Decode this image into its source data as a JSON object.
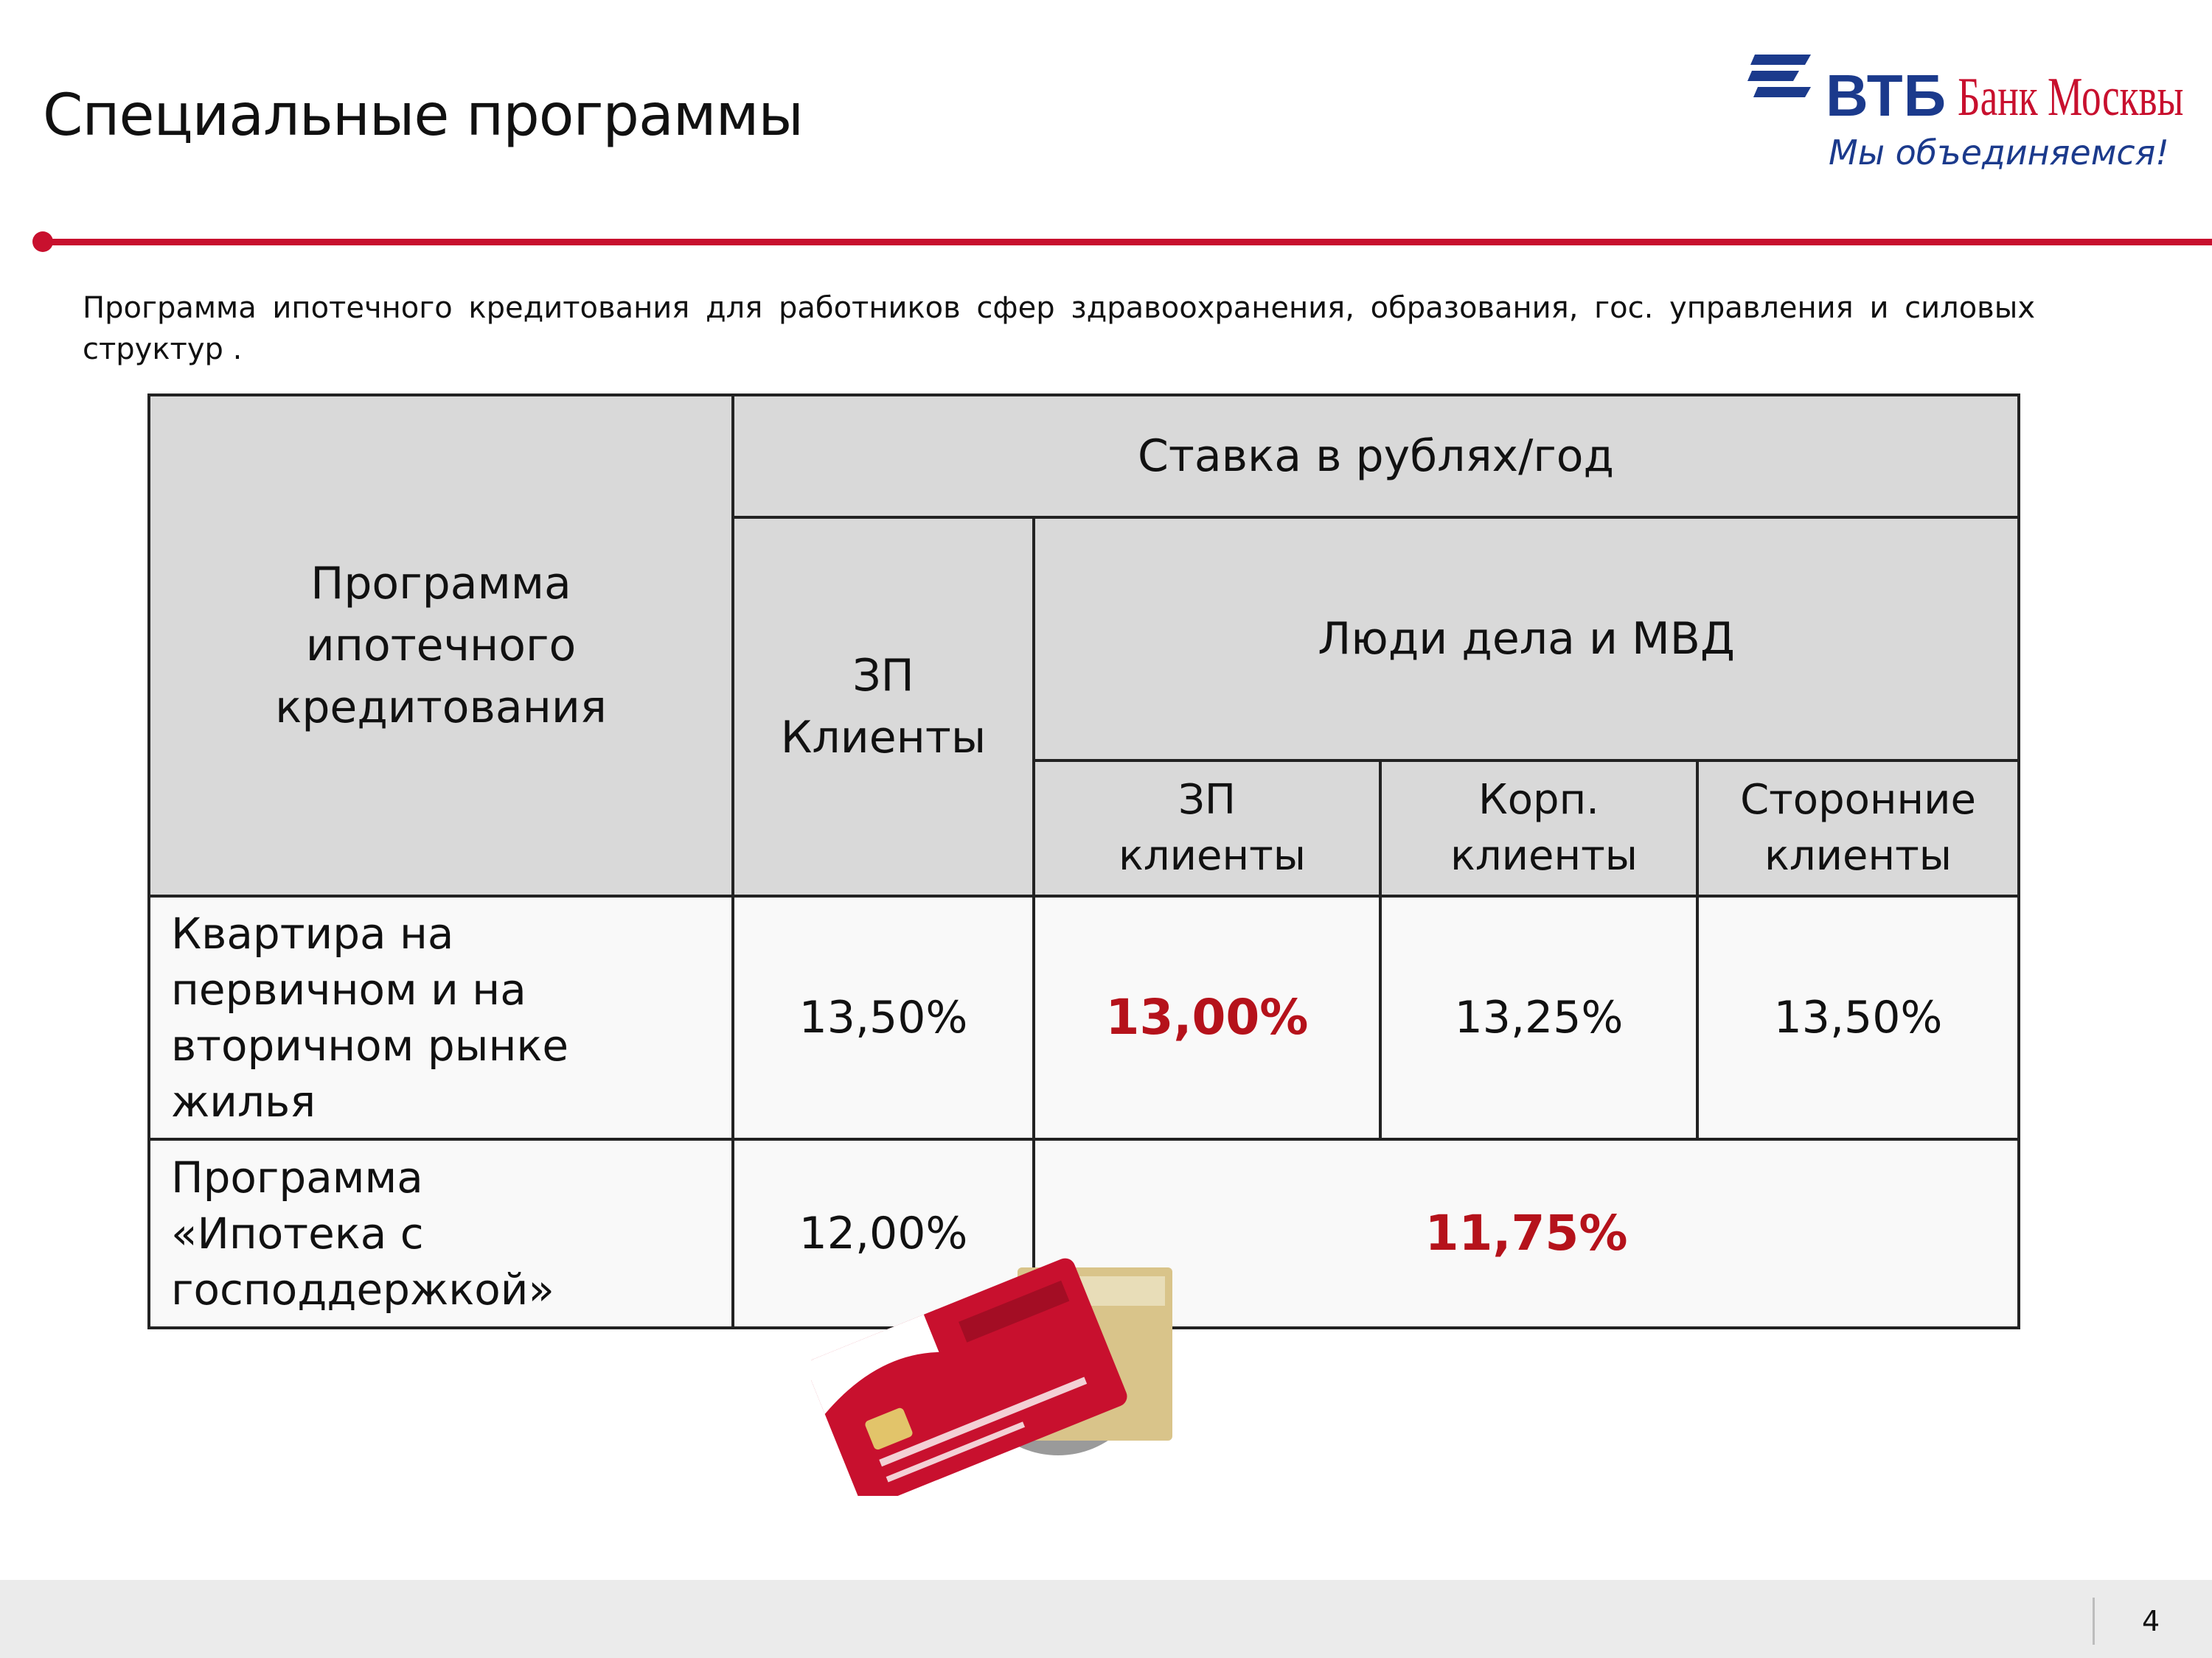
{
  "header": {
    "title": "Специальные программы",
    "logo": {
      "brand": "ВТБ",
      "brand_secondary": "Банк Москвы",
      "slogan": "Мы объединяемся!",
      "icon": "vtb-logo-icon"
    }
  },
  "intro": "Программа  ипотечного  кредитования  для  работников  сфер  здравоохранения,  образования,  гос. управления  и силовых структур .",
  "table": {
    "col_program": "Программа ипотечного кредитования",
    "col_rate": "Ставка в рублях/год",
    "col_zp": "ЗП Клиенты",
    "col_people": "Люди дела и МВД",
    "sub_zp": "ЗП клиенты",
    "sub_corp": "Корп. клиенты",
    "sub_third": "Сторонние клиенты",
    "rows": [
      {
        "label": "Квартира на первичном и на вторичном рынке жилья",
        "zp": "13,50%",
        "people_zp": "13,00%",
        "people_corp": "13,25%",
        "people_third": "13,50%"
      },
      {
        "label": "Программа «Ипотека с господдержкой»",
        "zp": "12,00%",
        "people_all": "11,75%"
      }
    ]
  },
  "colors": {
    "accent_red": "#c8102e",
    "highlight_red": "#b5121b",
    "brand_blue": "#1b3a8c",
    "header_gray": "#d9d9d9"
  },
  "footer": {
    "page_number": "4"
  }
}
